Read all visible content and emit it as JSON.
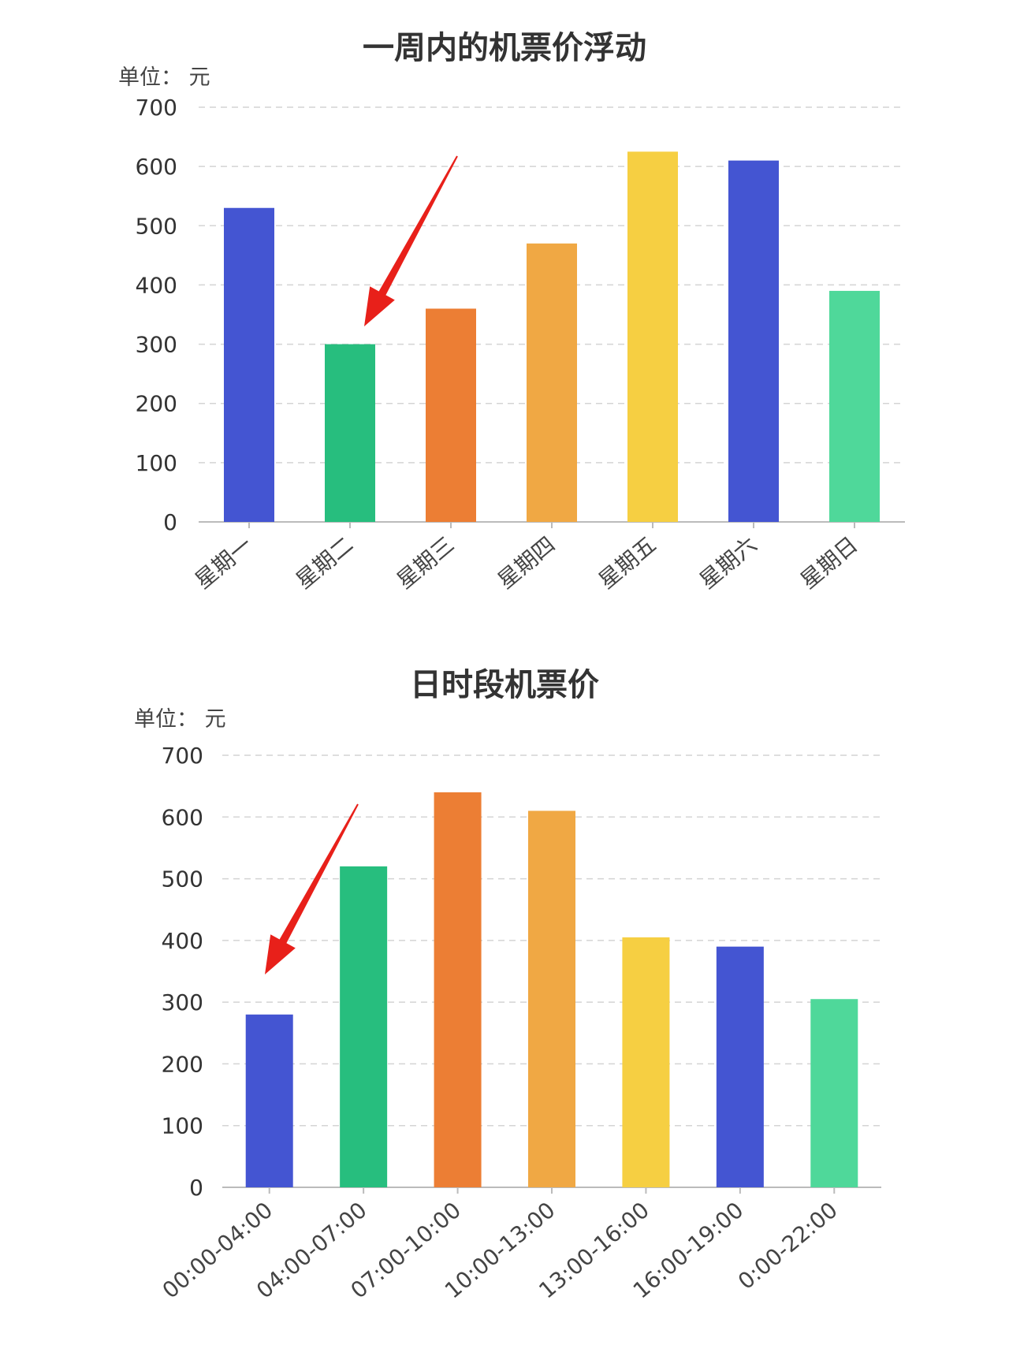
{
  "chart_data": [
    {
      "type": "bar",
      "title": "一周内的机票价浮动",
      "unit": "单位： 元",
      "categories": [
        "星期一",
        "星期二",
        "星期三",
        "星期四",
        "星期五",
        "星期六",
        "星期日"
      ],
      "values": [
        530,
        300,
        360,
        470,
        625,
        610,
        390
      ],
      "colors": [
        "#4455d2",
        "#27be7e",
        "#ec7e34",
        "#f0a844",
        "#f6cf42",
        "#4455d2",
        "#4fd89a"
      ],
      "ylim": [
        0,
        700
      ],
      "yticks": [
        0,
        100,
        200,
        300,
        400,
        500,
        600,
        700
      ],
      "grid": true,
      "annotation": "red arrow pointing to 星期二"
    },
    {
      "type": "bar",
      "title": "日时段机票价",
      "unit": "单位： 元",
      "categories": [
        "00:00-04:00",
        "04:00-07:00",
        "07:00-10:00",
        "10:00-13:00",
        "13:00-16:00",
        "16:00-19:00",
        "0:00-22:00"
      ],
      "values": [
        280,
        520,
        640,
        610,
        405,
        390,
        305
      ],
      "colors": [
        "#4455d2",
        "#27be7e",
        "#ec7e34",
        "#f0a844",
        "#f6cf42",
        "#4455d2",
        "#4fd89a"
      ],
      "ylim": [
        0,
        700
      ],
      "yticks": [
        0,
        100,
        200,
        300,
        400,
        500,
        600,
        700
      ],
      "grid": true,
      "annotation": "red arrow pointing to 00:00-04:00"
    }
  ]
}
